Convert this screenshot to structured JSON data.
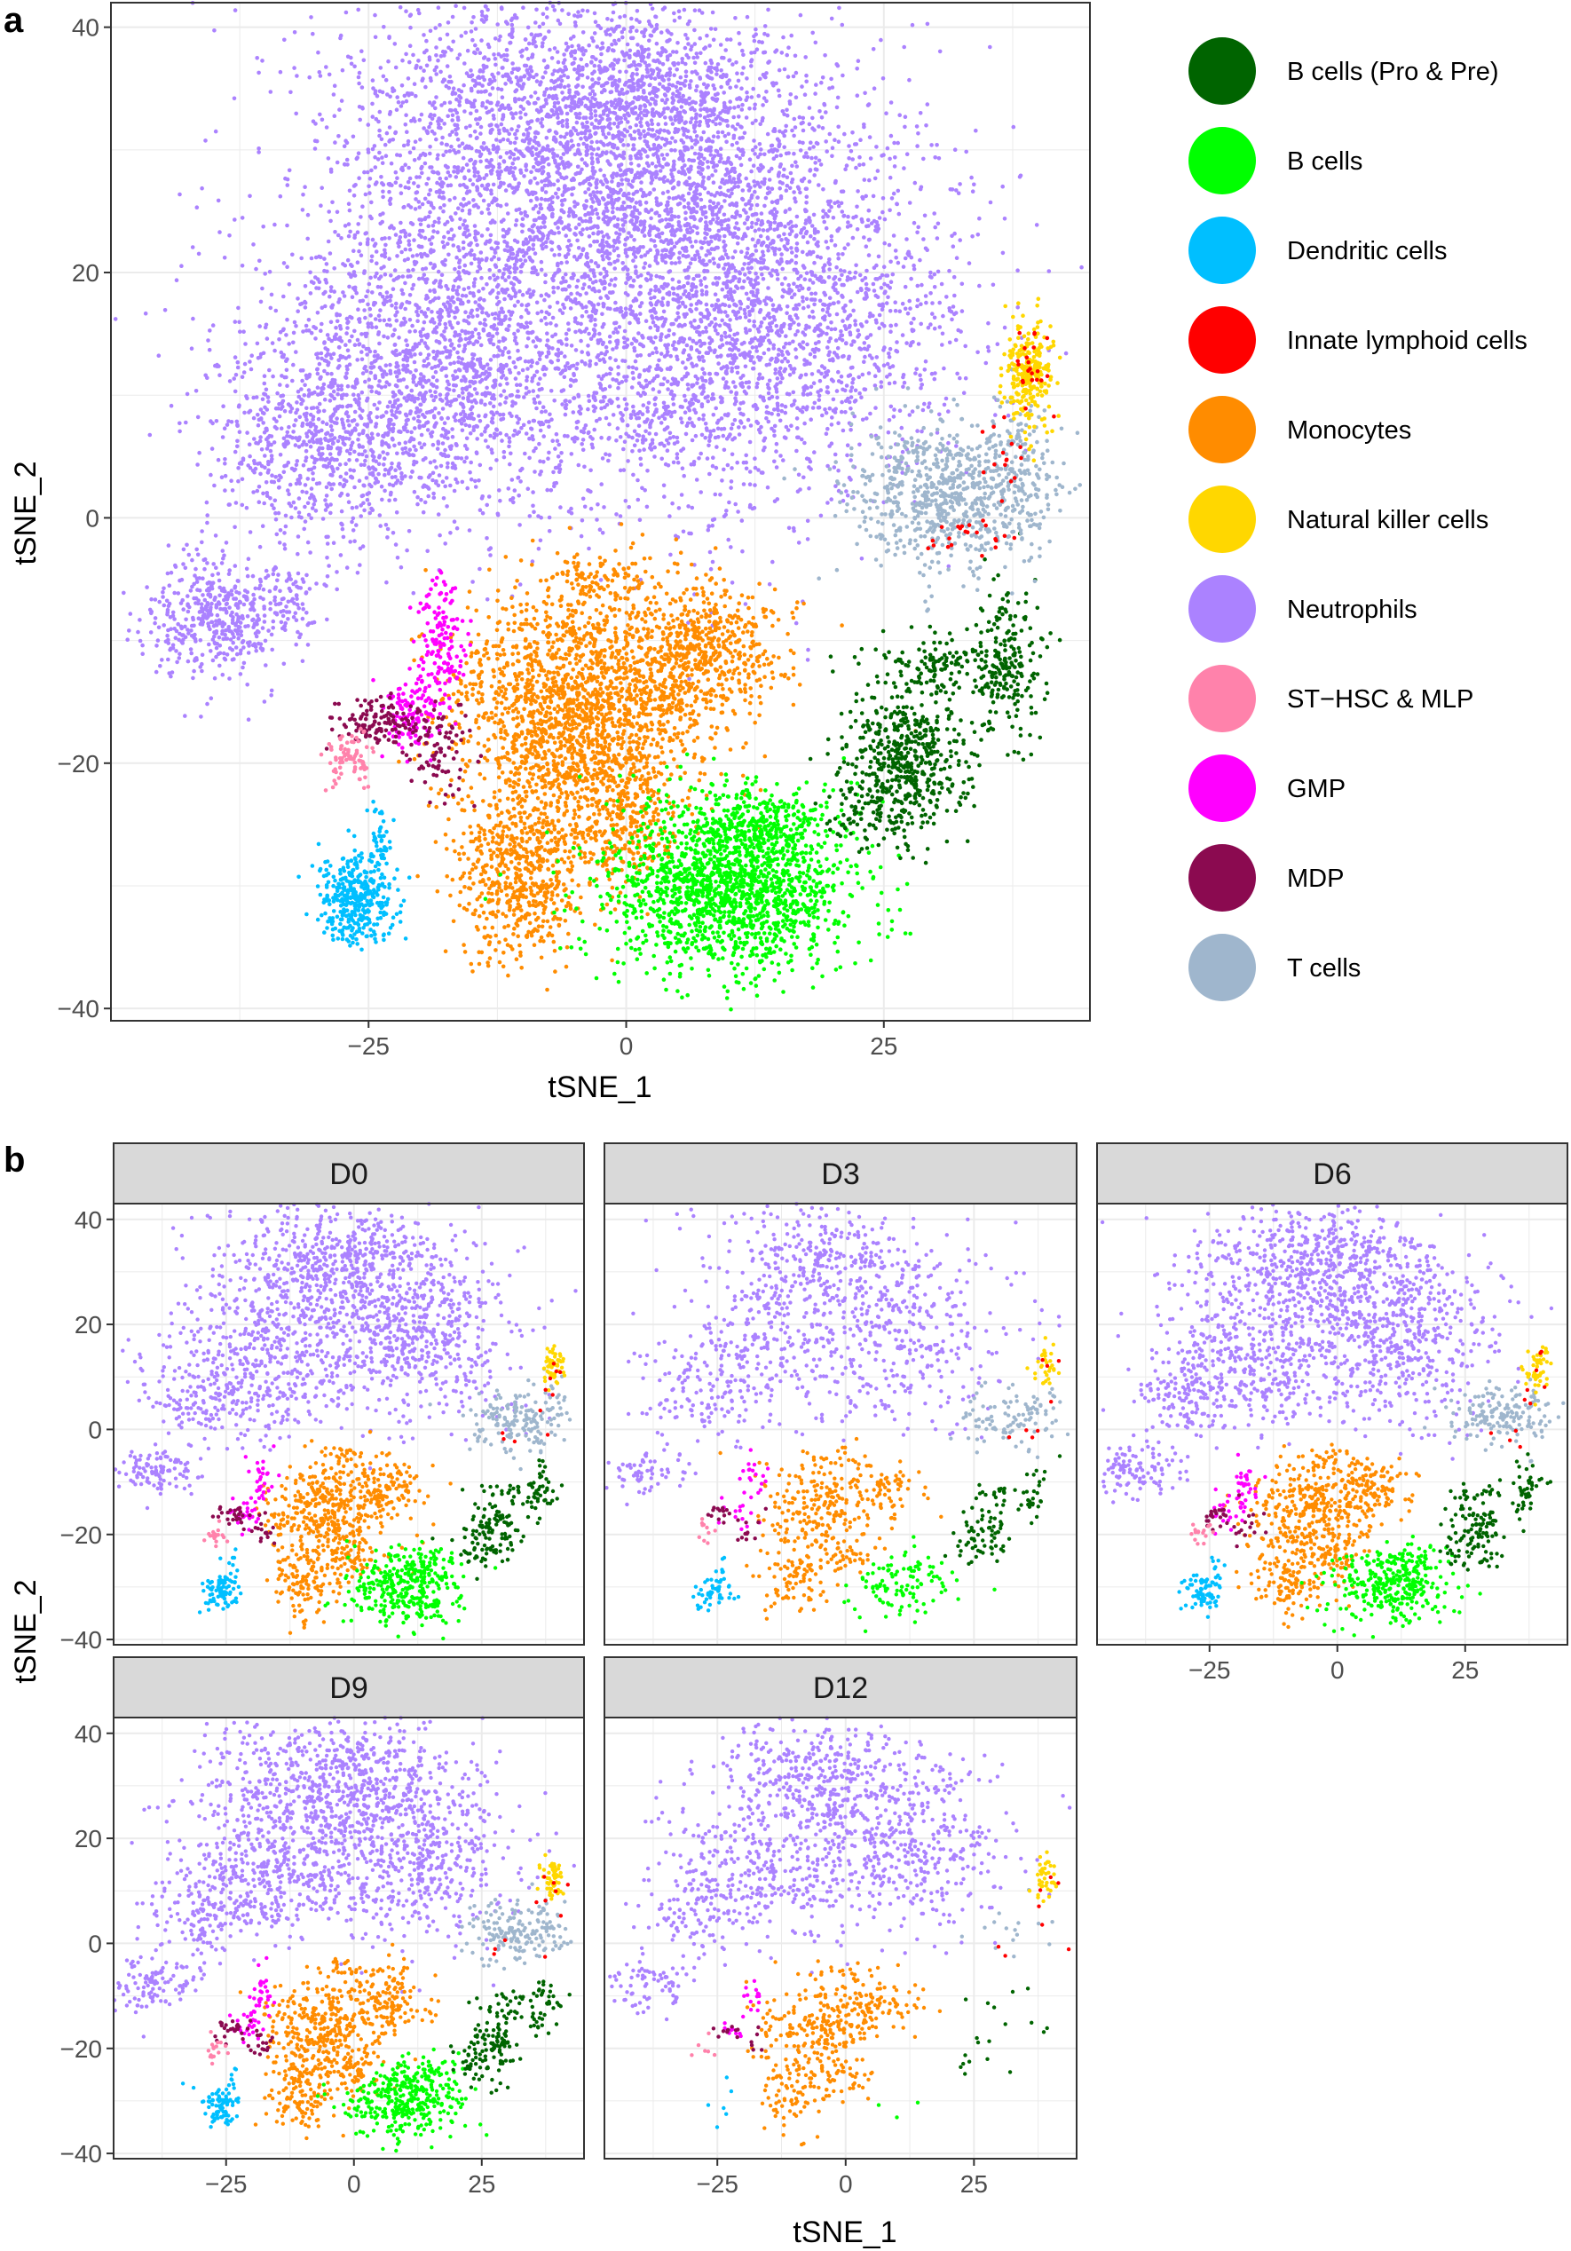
{
  "chart_data": [
    {
      "type": "scatter",
      "panel_label": "a",
      "xlabel": "tSNE_1",
      "ylabel": "tSNE_2",
      "xlim": [
        -50,
        45
      ],
      "ylim": [
        -41,
        42
      ],
      "xticks": [
        -25,
        0,
        25
      ],
      "yticks": [
        -40,
        -20,
        0,
        20,
        40
      ],
      "grid": true,
      "legend_position": "right",
      "legend": [
        "B cells (Pro & Pre)",
        "B cells",
        "Dendritic cells",
        "Innate lymphoid cells",
        "Monocytes",
        "Natural killer cells",
        "Neutrophils",
        "ST−HSC & MLP",
        "GMP",
        "MDP",
        "T cells"
      ]
    },
    {
      "type": "scatter",
      "panel_label": "b",
      "facets": [
        "D0",
        "D3",
        "D6",
        "D9",
        "D12"
      ],
      "xlabel": "tSNE_1",
      "ylabel": "tSNE_2",
      "xlim": [
        -47,
        45
      ],
      "ylim": [
        -41,
        43
      ],
      "xticks": [
        -25,
        0,
        25
      ],
      "yticks": [
        -40,
        -20,
        0,
        20,
        40
      ],
      "grid": true,
      "facet_scale": {
        "D0": 0.2,
        "D3": 0.12,
        "D6": 0.19,
        "D9": 0.2,
        "D12": 0.14
      },
      "facet_cluster_scale": {
        "D3": {
          "bcells": 0.5,
          "neut": 0.95
        },
        "D12": {
          "bcells": 0.015,
          "bpro": 0.15,
          "tcells": 0.12,
          "dend": 0.1,
          "gmp": 0.6,
          "mdp": 0.6,
          "sthsc": 0.5,
          "mono": 0.9
        }
      }
    }
  ],
  "cell_types": [
    {
      "key": "bpro",
      "name": "B cells (Pro & Pre)",
      "color": "#006400"
    },
    {
      "key": "bcells",
      "name": "B cells",
      "color": "#00FF00"
    },
    {
      "key": "dend",
      "name": "Dendritic cells",
      "color": "#00BFFF"
    },
    {
      "key": "ilc",
      "name": "Innate lymphoid cells",
      "color": "#FF0000"
    },
    {
      "key": "mono",
      "name": "Monocytes",
      "color": "#FF8C00"
    },
    {
      "key": "nk",
      "name": "Natural killer cells",
      "color": "#FFD700"
    },
    {
      "key": "neut",
      "name": "Neutrophils",
      "color": "#AB82FF"
    },
    {
      "key": "sthsc",
      "name": "ST−HSC & MLP",
      "color": "#FF82AB"
    },
    {
      "key": "gmp",
      "name": "GMP",
      "color": "#FF00FF"
    },
    {
      "key": "mdp",
      "name": "MDP",
      "color": "#8B0A50"
    },
    {
      "key": "tcells",
      "name": "T cells",
      "color": "#9FB6CD"
    }
  ],
  "clusters": [
    {
      "type": "neut",
      "cx": -5,
      "cy": 30,
      "sx": 12,
      "sy": 7,
      "n": 3200
    },
    {
      "type": "neut",
      "cx": -18,
      "cy": 12,
      "sx": 10,
      "sy": 6,
      "n": 2000
    },
    {
      "type": "neut",
      "cx": 12,
      "cy": 17,
      "sx": 10,
      "sy": 8,
      "n": 2600
    },
    {
      "type": "neut",
      "cx": -30,
      "cy": 5,
      "sx": 5,
      "sy": 4,
      "n": 500
    },
    {
      "type": "neut",
      "cx": 2,
      "cy": 35,
      "sx": 5,
      "sy": 3,
      "n": 300
    },
    {
      "type": "neut",
      "cx": -40,
      "cy": -8,
      "sx": 3.5,
      "sy": 2.5,
      "n": 450
    },
    {
      "type": "neut",
      "cx": -33,
      "cy": -7,
      "sx": 2,
      "sy": 1.5,
      "n": 80
    },
    {
      "type": "mono",
      "cx": -5,
      "cy": -16,
      "sx": 6,
      "sy": 5,
      "n": 1800
    },
    {
      "type": "mono",
      "cx": 7,
      "cy": -11,
      "sx": 4,
      "sy": 3,
      "n": 600
    },
    {
      "type": "mono",
      "cx": -10,
      "cy": -29,
      "sx": 3.2,
      "sy": 3.5,
      "n": 600
    },
    {
      "type": "mono",
      "cx": 0,
      "cy": -25,
      "sx": 2.5,
      "sy": 2.5,
      "n": 250
    },
    {
      "type": "mono",
      "cx": -2,
      "cy": -5,
      "sx": 3,
      "sy": 1,
      "n": 100
    },
    {
      "type": "bcells",
      "cx": 10,
      "cy": -30,
      "sx": 6,
      "sy": 3.5,
      "n": 1600
    },
    {
      "type": "bcells",
      "cx": 14,
      "cy": -25,
      "sx": 3,
      "sy": 1.5,
      "n": 200
    },
    {
      "type": "bpro",
      "cx": 27,
      "cy": -20,
      "sx": 3,
      "sy": 3,
      "n": 500
    },
    {
      "type": "bpro",
      "cx": 30,
      "cy": -12,
      "sx": 4,
      "sy": 1.2,
      "n": 150
    },
    {
      "type": "bpro",
      "cx": 37,
      "cy": -12,
      "sx": 1.5,
      "sy": 3,
      "n": 200
    },
    {
      "type": "bpro",
      "cx": 23,
      "cy": -24,
      "sx": 1.5,
      "sy": 1.2,
      "n": 60
    },
    {
      "type": "tcells",
      "cx": 31,
      "cy": 2,
      "sx": 4.5,
      "sy": 3,
      "n": 700
    },
    {
      "type": "tcells",
      "cx": 38,
      "cy": 3,
      "sx": 2,
      "sy": 3,
      "n": 150
    },
    {
      "type": "nk",
      "cx": 39,
      "cy": 12,
      "sx": 1.1,
      "sy": 2.2,
      "n": 260
    },
    {
      "type": "ilc",
      "cx": 39.5,
      "cy": 12,
      "sx": 1,
      "sy": 2,
      "n": 22
    },
    {
      "type": "ilc",
      "cx": 33,
      "cy": -1.5,
      "sx": 3,
      "sy": 1,
      "n": 22
    },
    {
      "type": "ilc",
      "cx": 37,
      "cy": 5,
      "sx": 1.5,
      "sy": 2,
      "n": 15
    },
    {
      "type": "dend",
      "cx": -26,
      "cy": -31,
      "sx": 1.8,
      "sy": 1.8,
      "n": 380
    },
    {
      "type": "dend",
      "cx": -24,
      "cy": -26,
      "sx": 0.6,
      "sy": 1.5,
      "n": 40
    },
    {
      "type": "gmp",
      "cx": -18,
      "cy": -10,
      "sx": 1.2,
      "sy": 2.5,
      "n": 150
    },
    {
      "type": "gmp",
      "cx": -21,
      "cy": -16,
      "sx": 1.5,
      "sy": 1.5,
      "n": 120
    },
    {
      "type": "mdp",
      "cx": -24,
      "cy": -16.5,
      "sx": 2,
      "sy": 1,
      "n": 120
    },
    {
      "type": "mdp",
      "cx": -18,
      "cy": -19,
      "sx": 1.5,
      "sy": 2,
      "n": 80
    },
    {
      "type": "sthsc",
      "cx": -27,
      "cy": -20,
      "sx": 1.2,
      "sy": 1.2,
      "n": 80
    }
  ]
}
